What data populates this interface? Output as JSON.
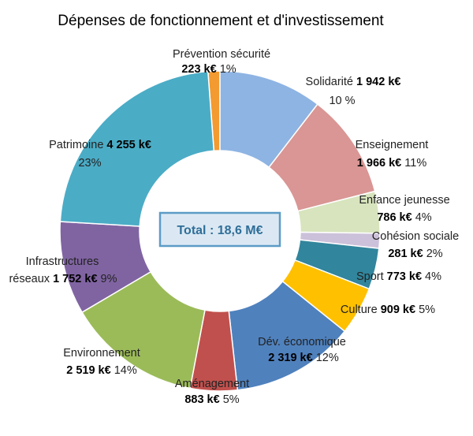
{
  "chart_data": {
    "type": "pie",
    "title": "Dépenses de fonctionnement et d'investissement",
    "center_label": "Total : 18,6 M€",
    "slices": [
      {
        "name": "Prévention sécurité",
        "value_label": "223 k€",
        "value": 223,
        "pct_label": "1%",
        "color": "#f39a30"
      },
      {
        "name": "Solidarité",
        "value_label": "1 942 k€",
        "value": 1942,
        "pct_label": "10 %",
        "color": "#8eb4e3"
      },
      {
        "name": "Enseignement",
        "value_label": "1 966 k€",
        "value": 1966,
        "pct_label": "11%",
        "color": "#d99694"
      },
      {
        "name": "Enfance jeunesse",
        "value_label": "786 k€",
        "value": 786,
        "pct_label": "4%",
        "color": "#d7e4bd"
      },
      {
        "name": "Cohésion sociale",
        "value_label": "281 k€",
        "value": 281,
        "pct_label": "2%",
        "color": "#ccc1da"
      },
      {
        "name": "Sport",
        "value_label": "773 k€",
        "value": 773,
        "pct_label": "4%",
        "color": "#31859c"
      },
      {
        "name": "Culture",
        "value_label": "909 k€",
        "value": 909,
        "pct_label": "5%",
        "color": "#ffc000"
      },
      {
        "name": "Dév. économique",
        "value_label": "2 319 k€",
        "value": 2319,
        "pct_label": "12%",
        "color": "#4f81bd"
      },
      {
        "name": "Aménagement",
        "value_label": "883 k€",
        "value": 883,
        "pct_label": "5%",
        "color": "#c0504d"
      },
      {
        "name": "Environnement",
        "value_label": "2 519 k€",
        "value": 2519,
        "pct_label": "14%",
        "color": "#9bbb59"
      },
      {
        "name": "Infrastructures réseaux",
        "name_lines": [
          "Infrastructures",
          "réseaux"
        ],
        "value_label": "1 752 k€",
        "value": 1752,
        "pct_label": "9%",
        "color": "#8064a2"
      },
      {
        "name": "Patrimoine",
        "value_label": "4 255 k€",
        "value": 4255,
        "pct_label": "23%",
        "color": "#4bacc6"
      }
    ]
  }
}
